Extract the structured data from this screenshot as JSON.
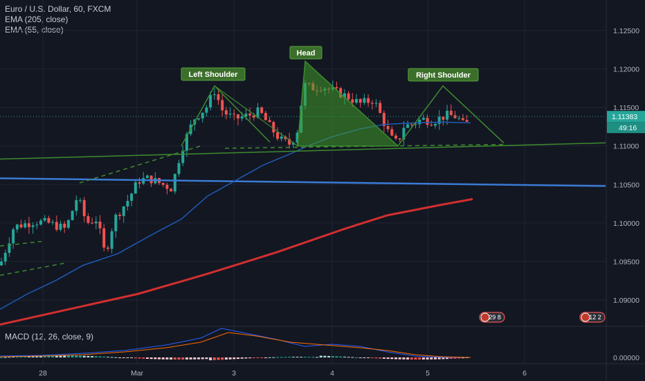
{
  "legend": {
    "title": "Euro / U.S. Dollar, 60, FXCM",
    "ema1": "EMA (205, close)",
    "ema2": "EMA (55, close)"
  },
  "macd_label": "MACD (12, 26, close, 9)",
  "price_tag": {
    "price": "1.11383",
    "countdown": "49:16"
  },
  "events": [
    "29 8",
    "12 2"
  ],
  "colors": {
    "background": "#131722",
    "up": "#26a69a",
    "down": "#ef5350",
    "ema205": "#d32f2f",
    "ema55": "#1e5bb8",
    "pattern": "#3d8c2f",
    "pattern_fill": "#3f9b2a",
    "blue_line": "#3a7bd5"
  },
  "chart_data": {
    "type": "candlestick",
    "y_ticks": [
      "1.12500",
      "1.12000",
      "1.11500",
      "1.11000",
      "1.10500",
      "1.10000",
      "1.09500",
      "1.09000"
    ],
    "macd_ticks": [
      "0.00000"
    ],
    "x_ticks": [
      "28",
      "Mar",
      "3",
      "4",
      "5",
      "6"
    ],
    "ylim": [
      1.0868,
      1.13
    ],
    "annotations": [
      "Left Shoulder",
      "Head",
      "Right Shoulder"
    ],
    "patterns": {
      "left_shoulder": [
        [
          262,
          1.11
        ],
        [
          310,
          1.1178
        ],
        [
          390,
          1.1105
        ]
      ],
      "head": [
        [
          430,
          1.11
        ],
        [
          441,
          1.121
        ],
        [
          575,
          1.11
        ]
      ],
      "right_shoulder": [
        [
          575,
          1.11
        ],
        [
          640,
          1.1178
        ],
        [
          728,
          1.1104
        ]
      ],
      "neckline": [
        [
          0,
          1.1083
        ],
        [
          875,
          1.1104
        ]
      ],
      "horizontal": [
        [
          0,
          1.1058
        ],
        [
          875,
          1.1048
        ]
      ]
    }
  }
}
